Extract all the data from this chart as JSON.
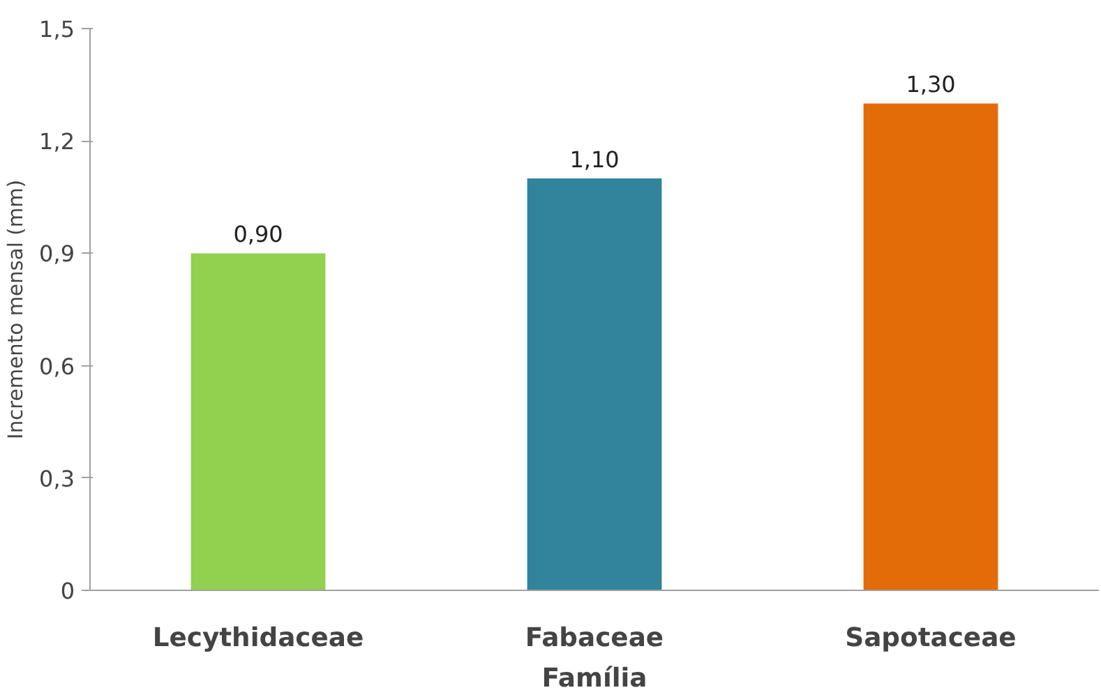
{
  "chart_data": {
    "type": "bar",
    "xlabel": "Família",
    "ylabel": "Incremento mensal (mm)",
    "categories": [
      "Lecythidaceae",
      "Fabaceae",
      "Sapotaceae"
    ],
    "values": [
      0.9,
      1.1,
      1.3
    ],
    "colors": [
      "#92d050",
      "#31849b",
      "#e36c09"
    ],
    "value_labels": [
      "0,90",
      "1,10",
      "1,30"
    ],
    "ylim": [
      0,
      1.5
    ],
    "yticks": [
      0,
      {
        "value": 0.3,
        "label": "0,3"
      },
      {
        "value": 0.6,
        "label": "0,6"
      },
      {
        "value": 0.9,
        "label": "0,9"
      },
      {
        "value": 1.2,
        "label": "1,2"
      },
      {
        "value": 1.5,
        "label": "1,5"
      }
    ],
    "grid": false
  }
}
